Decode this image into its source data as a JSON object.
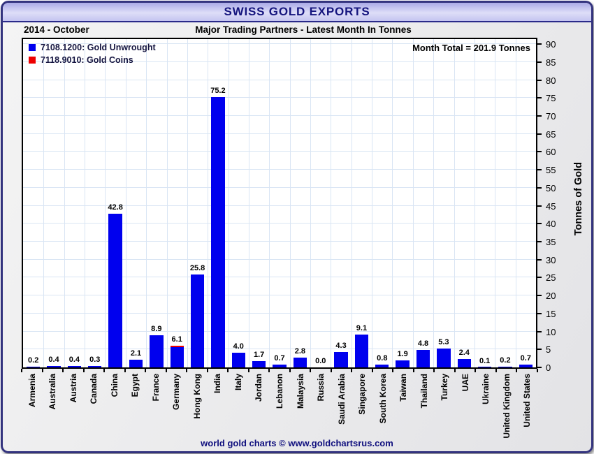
{
  "header": {
    "title": "SWISS GOLD EXPORTS"
  },
  "subtitle": {
    "left": "2014 - October",
    "center": "Major Trading Partners - Latest Month In Tonnes"
  },
  "legend": {
    "items": [
      {
        "label": "7108.1200: Gold Unwrought",
        "color": "#0000ee"
      },
      {
        "label": "7118.9010: Gold Coins",
        "color": "#ee0000"
      }
    ]
  },
  "annotation": {
    "month_total": "Month Total = 201.9 Tonnes"
  },
  "footer": {
    "credit": "world gold charts © www.goldchartsrus.com"
  },
  "colors": {
    "bar_unwrought": "#0000ee",
    "bar_coins": "#ee0000",
    "grid": "#d9e5f4",
    "accent_navy": "#15157e"
  },
  "chart_data": {
    "type": "bar",
    "stacked": true,
    "title": "SWISS GOLD EXPORTS",
    "subtitle": "Major Trading Partners - Latest Month In Tonnes",
    "period": "2014 - October",
    "xlabel": "",
    "ylabel": "Tonnes of Gold",
    "ylim": [
      0,
      90
    ],
    "ytick_step": 5,
    "grid": true,
    "legend_position": "top-left",
    "categories": [
      "Armenia",
      "Australia",
      "Austria",
      "Canada",
      "China",
      "Egypt",
      "France",
      "Germany",
      "Hong Kong",
      "India",
      "Italy",
      "Jordan",
      "Lebanon",
      "Malaysia",
      "Russia",
      "Saudi Arabia",
      "Singapore",
      "South Korea",
      "Taiwan",
      "Thailand",
      "Turkey",
      "UAE",
      "Ukraine",
      "United Kingdom",
      "United States"
    ],
    "series": [
      {
        "name": "7108.1200: Gold Unwrought",
        "color": "#0000ee",
        "values": [
          0.2,
          0.4,
          0.4,
          0.3,
          42.8,
          2.1,
          8.9,
          5.6,
          25.8,
          75.2,
          4.0,
          1.7,
          0.7,
          2.8,
          0.0,
          4.3,
          9.1,
          0.8,
          1.9,
          4.8,
          5.3,
          2.4,
          0.1,
          0.2,
          0.7
        ]
      },
      {
        "name": "7118.9010: Gold Coins",
        "color": "#ee0000",
        "values": [
          0,
          0,
          0,
          0,
          0,
          0,
          0,
          0.5,
          0,
          0,
          0,
          0,
          0,
          0,
          0,
          0,
          0,
          0,
          0,
          0,
          0,
          0,
          0,
          0,
          0
        ]
      }
    ],
    "totals": [
      0.2,
      0.4,
      0.4,
      0.3,
      42.8,
      2.1,
      8.9,
      6.1,
      25.8,
      75.2,
      4.0,
      1.7,
      0.7,
      2.8,
      0.0,
      4.3,
      9.1,
      0.8,
      1.9,
      4.8,
      5.3,
      2.4,
      0.1,
      0.2,
      0.7
    ],
    "bar_labels": [
      "0.2",
      "0.4",
      "0.4",
      "0.3",
      "42.8",
      "2.1",
      "8.9",
      "6.1",
      "25.8",
      "75.2",
      "4.0",
      "1.7",
      "0.7",
      "2.8",
      "0.0",
      "4.3",
      "9.1",
      "0.8",
      "1.9",
      "4.8",
      "5.3",
      "2.4",
      "0.1",
      "0.2",
      "0.7"
    ],
    "month_total_tonnes": 201.9
  }
}
